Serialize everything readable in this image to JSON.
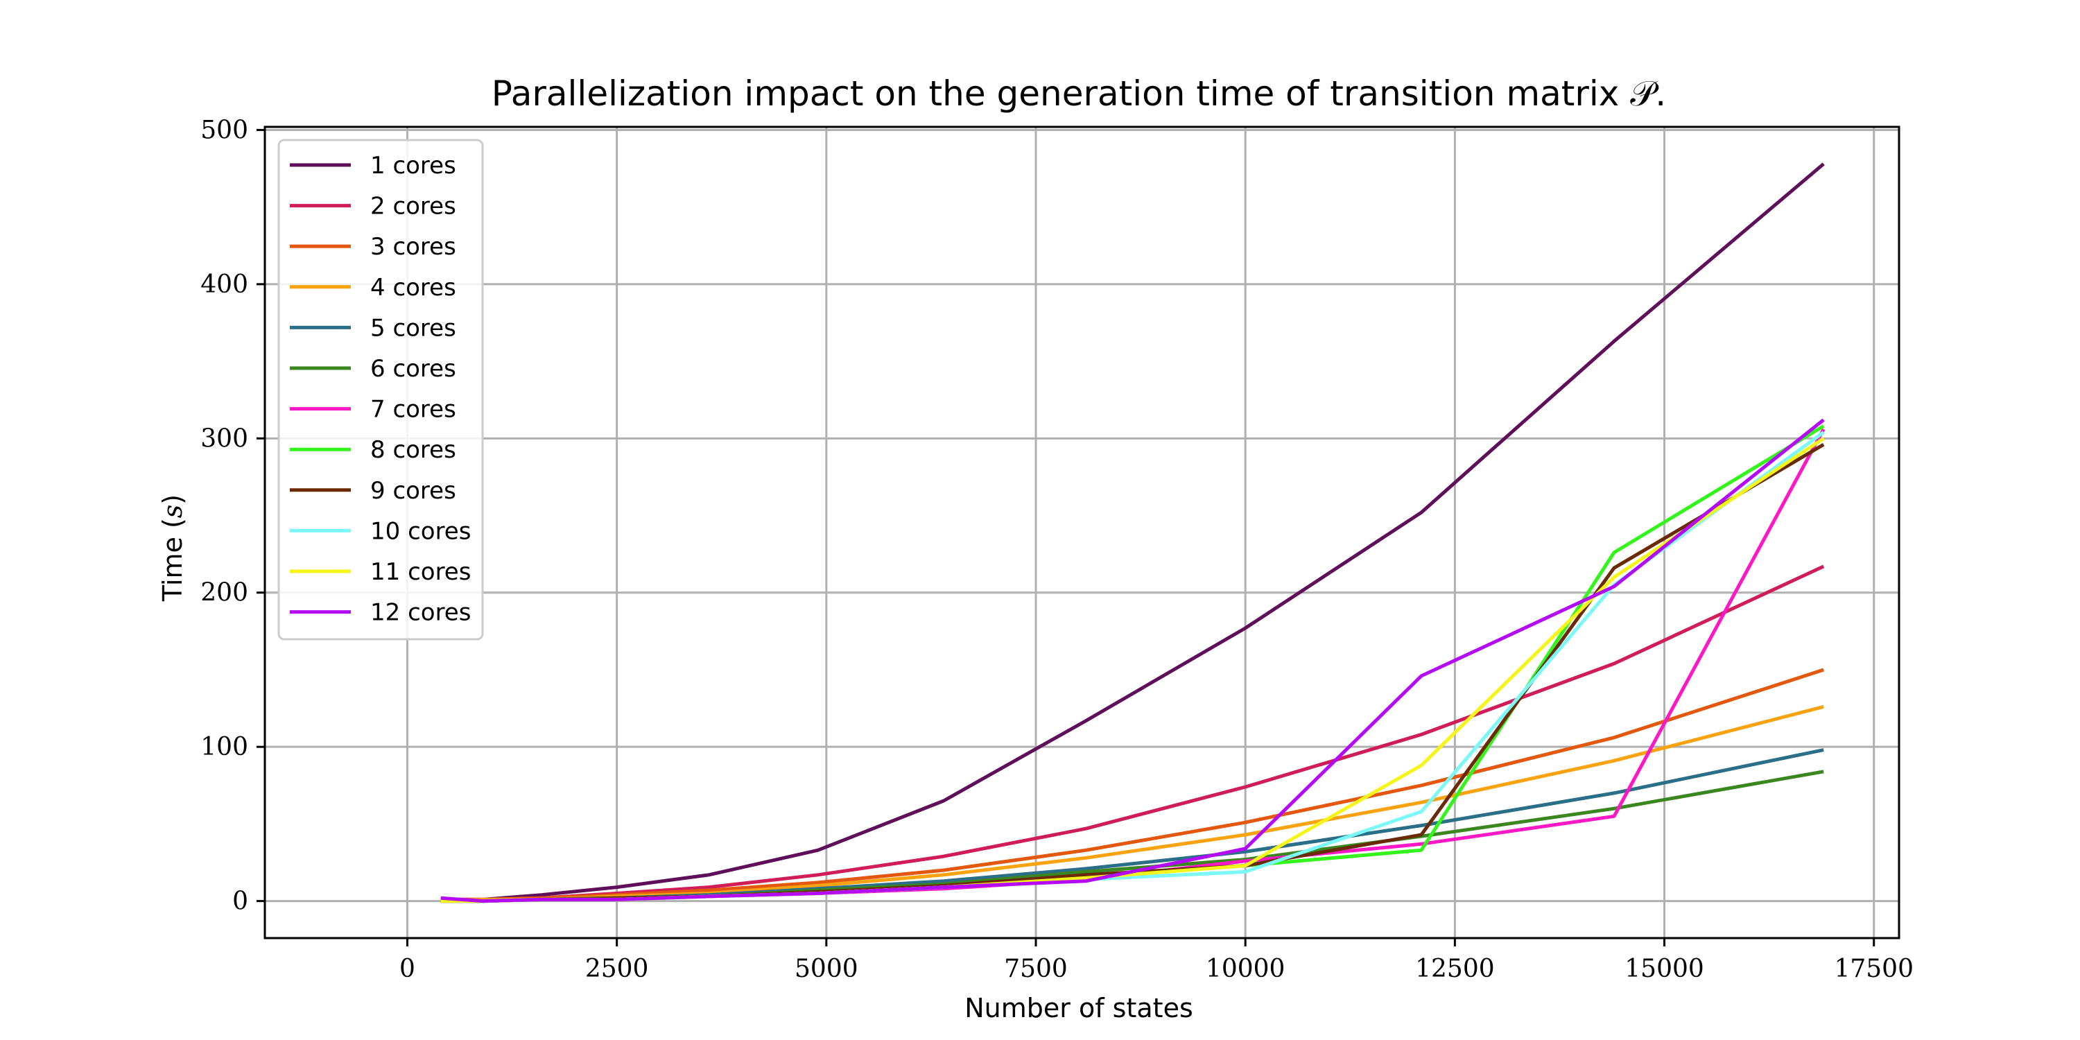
{
  "chart_data": {
    "type": "line",
    "title": "Parallelization impact on the generation time of transition matrix 𝒫.",
    "xlabel": "Number of states",
    "ylabel_prefix": "Time (",
    "ylabel_var": "s",
    "ylabel_suffix": ")",
    "xlim": [
      -1700,
      17800
    ],
    "ylim": [
      -24,
      502
    ],
    "xticks": [
      0,
      2500,
      5000,
      7500,
      10000,
      12500,
      15000,
      17500
    ],
    "xtick_labels": [
      "0",
      "2500",
      "5000",
      "7500",
      "10000",
      "12500",
      "15000",
      "17500"
    ],
    "yticks": [
      0,
      100,
      200,
      300,
      400,
      500
    ],
    "ytick_labels": [
      "0",
      "100",
      "200",
      "300",
      "400",
      "500"
    ],
    "grid": true,
    "legend_position": "upper-left",
    "x": [
      400,
      900,
      1600,
      2500,
      3600,
      4900,
      6400,
      8100,
      10000,
      12100,
      14400,
      16900
    ],
    "series": [
      {
        "name": "1 cores",
        "color": "#5f0f5a",
        "values": [
          1,
          1,
          4,
          9,
          17,
          33,
          65,
          117,
          177,
          252,
          363,
          478
        ]
      },
      {
        "name": "2 cores",
        "color": "#d01c57",
        "values": [
          1,
          1,
          2,
          5,
          9,
          17,
          29,
          47,
          74,
          108,
          154,
          217
        ]
      },
      {
        "name": "3 cores",
        "color": "#e4580d",
        "values": [
          1,
          1,
          2,
          4,
          7,
          12,
          20,
          33,
          51,
          75,
          106,
          150
        ]
      },
      {
        "name": "4 cores",
        "color": "#f8a30f",
        "values": [
          0,
          1,
          1,
          3,
          5,
          10,
          17,
          28,
          43,
          64,
          91,
          126
        ]
      },
      {
        "name": "5 cores",
        "color": "#2a6e87",
        "values": [
          0,
          0,
          1,
          2,
          4,
          8,
          13,
          21,
          32,
          49,
          70,
          98
        ]
      },
      {
        "name": "6 cores",
        "color": "#3a871f",
        "values": [
          0,
          0,
          1,
          2,
          3,
          7,
          11,
          19,
          27,
          42,
          60,
          84
        ]
      },
      {
        "name": "7 cores",
        "color": "#fd18c6",
        "values": [
          0,
          0,
          1,
          1,
          3,
          5,
          8,
          14,
          26,
          37,
          55,
          306
        ]
      },
      {
        "name": "8 cores",
        "color": "#34f51b",
        "values": [
          0,
          0,
          1,
          1,
          3,
          5,
          9,
          16,
          23,
          33,
          226,
          308
        ]
      },
      {
        "name": "9 cores",
        "color": "#6b2a06",
        "values": [
          0,
          0,
          1,
          2,
          3,
          6,
          10,
          17,
          23,
          43,
          216,
          296
        ]
      },
      {
        "name": "10 cores",
        "color": "#7cf8f8",
        "values": [
          0,
          0,
          1,
          1,
          3,
          5,
          9,
          14,
          19,
          58,
          205,
          304
        ]
      },
      {
        "name": "11 cores",
        "color": "#f6f51a",
        "values": [
          0,
          0,
          1,
          1,
          3,
          5,
          9,
          15,
          23,
          88,
          210,
          300
        ]
      },
      {
        "name": "12 cores",
        "color": "#b40bf6",
        "values": [
          2,
          0,
          1,
          1,
          3,
          5,
          9,
          13,
          34,
          146,
          204,
          312
        ]
      }
    ]
  }
}
